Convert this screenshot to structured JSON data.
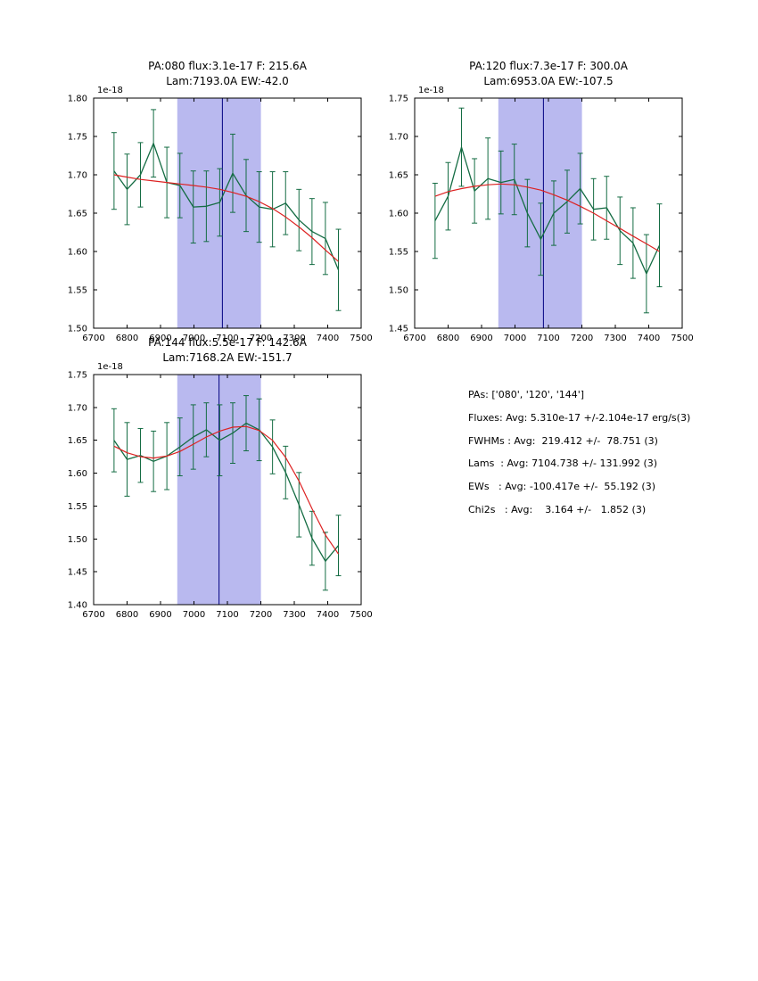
{
  "colors": {
    "data": "#146c43",
    "fit": "#dd2222",
    "band": "#b9b9ef",
    "vline": "#000080",
    "axis": "#000000"
  },
  "panel": {
    "lines": [
      "PAs: ['080', '120', '144']",
      "Fluxes: Avg: 5.310e-17 +/-2.104e-17 erg/s(3)",
      "FWHMs : Avg:  219.412 +/-  78.751 (3)",
      "Lams  : Avg: 7104.738 +/- 131.992 (3)",
      "EWs   : Avg: -100.417e +/-  55.192 (3)",
      "Chi2s   : Avg:    3.164 +/-   1.852 (3)"
    ]
  },
  "chart_data": [
    {
      "type": "line",
      "title_line1": "PA:080 flux:3.1e-17 F: 215.6A",
      "title_line2": "Lam:7193.0A EW:-42.0",
      "offset_text": "1e-18",
      "xlim": [
        6700,
        7500
      ],
      "ylim": [
        1.5,
        1.8
      ],
      "xticks": [
        6700,
        6800,
        6900,
        7000,
        7100,
        7200,
        7300,
        7400,
        7500
      ],
      "yticks": [
        1.5,
        1.55,
        1.6,
        1.65,
        1.7,
        1.75,
        1.8
      ],
      "band": [
        6950,
        7200
      ],
      "vline": 7085,
      "x": [
        6761,
        6800,
        6840,
        6879,
        6919,
        6958,
        6998,
        7037,
        7077,
        7116,
        7156,
        7195,
        7235,
        7274,
        7314,
        7353,
        7393,
        7432
      ],
      "series": [
        {
          "name": "data",
          "values": [
            1.705,
            1.681,
            1.7,
            1.741,
            1.69,
            1.686,
            1.658,
            1.659,
            1.664,
            1.702,
            1.673,
            1.658,
            1.655,
            1.663,
            1.641,
            1.626,
            1.617,
            1.576
          ],
          "errors": [
            0.05,
            0.046,
            0.042,
            0.044,
            0.046,
            0.042,
            0.047,
            0.046,
            0.044,
            0.051,
            0.047,
            0.046,
            0.049,
            0.041,
            0.04,
            0.043,
            0.047,
            0.053
          ]
        },
        {
          "name": "fit",
          "values": [
            1.7,
            1.697,
            1.694,
            1.692,
            1.69,
            1.688,
            1.686,
            1.684,
            1.681,
            1.677,
            1.672,
            1.665,
            1.656,
            1.645,
            1.632,
            1.618,
            1.602,
            1.587
          ]
        }
      ]
    },
    {
      "type": "line",
      "title_line1": "PA:120 flux:7.3e-17 F: 300.0A",
      "title_line2": "Lam:6953.0A EW:-107.5",
      "offset_text": "1e-18",
      "xlim": [
        6700,
        7500
      ],
      "ylim": [
        1.45,
        1.75
      ],
      "xticks": [
        6700,
        6800,
        6900,
        7000,
        7100,
        7200,
        7300,
        7400,
        7500
      ],
      "yticks": [
        1.45,
        1.5,
        1.55,
        1.6,
        1.65,
        1.7,
        1.75
      ],
      "band": [
        6950,
        7200
      ],
      "vline": 7085,
      "x": [
        6761,
        6800,
        6840,
        6879,
        6919,
        6958,
        6998,
        7037,
        7077,
        7116,
        7156,
        7195,
        7235,
        7274,
        7314,
        7353,
        7393,
        7432
      ],
      "series": [
        {
          "name": "data",
          "values": [
            1.59,
            1.622,
            1.686,
            1.629,
            1.645,
            1.64,
            1.644,
            1.6,
            1.566,
            1.6,
            1.615,
            1.632,
            1.605,
            1.607,
            1.577,
            1.561,
            1.521,
            1.558
          ],
          "errors": [
            0.049,
            0.044,
            0.051,
            0.042,
            0.053,
            0.041,
            0.046,
            0.044,
            0.047,
            0.042,
            0.041,
            0.046,
            0.04,
            0.041,
            0.044,
            0.046,
            0.051,
            0.054
          ]
        },
        {
          "name": "fit",
          "values": [
            1.622,
            1.628,
            1.632,
            1.635,
            1.637,
            1.638,
            1.637,
            1.634,
            1.63,
            1.624,
            1.617,
            1.609,
            1.6,
            1.59,
            1.58,
            1.57,
            1.56,
            1.55
          ]
        }
      ]
    },
    {
      "type": "line",
      "title_line1": "PA:144 flux:5.5e-17 F: 142.6A",
      "title_line2": "Lam:7168.2A EW:-151.7",
      "offset_text": "1e-18",
      "xlim": [
        6700,
        7500
      ],
      "ylim": [
        1.4,
        1.75
      ],
      "xticks": [
        6700,
        6800,
        6900,
        7000,
        7100,
        7200,
        7300,
        7400,
        7500
      ],
      "yticks": [
        1.4,
        1.45,
        1.5,
        1.55,
        1.6,
        1.65,
        1.7,
        1.75
      ],
      "band": [
        6950,
        7200
      ],
      "vline": 7075,
      "x": [
        6761,
        6800,
        6840,
        6879,
        6919,
        6958,
        6998,
        7037,
        7077,
        7116,
        7156,
        7195,
        7235,
        7274,
        7314,
        7353,
        7393,
        7432
      ],
      "series": [
        {
          "name": "data",
          "values": [
            1.65,
            1.621,
            1.627,
            1.618,
            1.626,
            1.64,
            1.655,
            1.666,
            1.65,
            1.661,
            1.676,
            1.666,
            1.64,
            1.601,
            1.552,
            1.501,
            1.466,
            1.49
          ],
          "errors": [
            0.048,
            0.056,
            0.041,
            0.046,
            0.051,
            0.044,
            0.049,
            0.041,
            0.054,
            0.046,
            0.042,
            0.047,
            0.041,
            0.04,
            0.049,
            0.041,
            0.044,
            0.046
          ]
        },
        {
          "name": "fit",
          "values": [
            1.641,
            1.631,
            1.625,
            1.623,
            1.626,
            1.633,
            1.644,
            1.655,
            1.664,
            1.67,
            1.671,
            1.665,
            1.65,
            1.624,
            1.588,
            1.546,
            1.506,
            1.477
          ]
        }
      ]
    }
  ]
}
